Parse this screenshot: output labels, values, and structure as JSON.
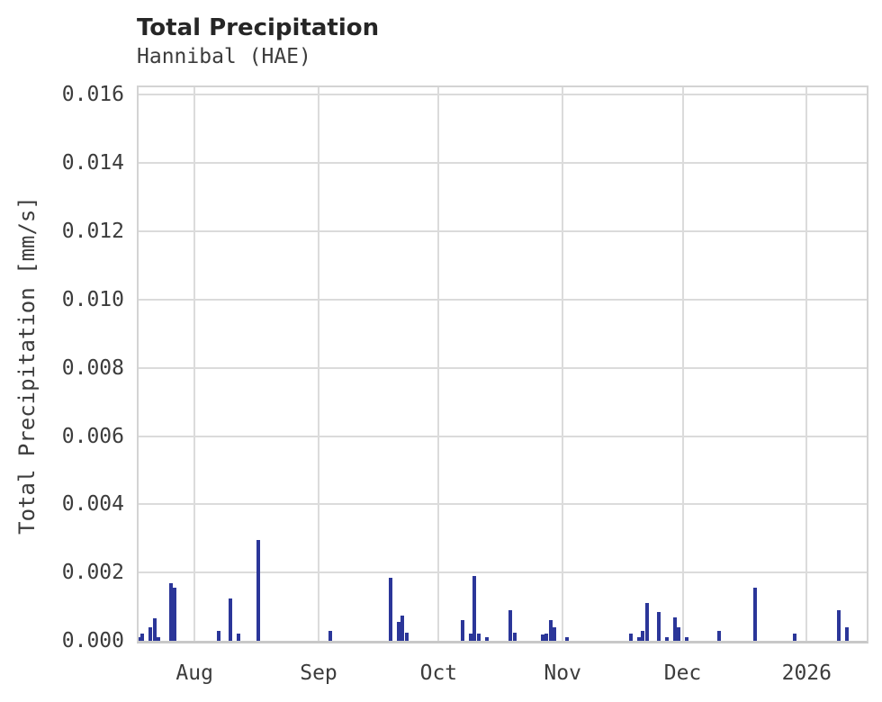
{
  "header": {
    "title": "Total Precipitation",
    "subtitle": "Hannibal (HAE)"
  },
  "chart_data": {
    "type": "bar",
    "title": "Total Precipitation",
    "subtitle": "Hannibal (HAE)",
    "xlabel": "",
    "ylabel": "Total Precipitation [mm/s]",
    "grid": "on",
    "legend_position": "none",
    "background_color": "#ffffff",
    "bar_color": "#2b3699",
    "grid_color": "#dbdbdb",
    "spine_color": "#d3d3d3",
    "x_domain": [
      "2025-07-18",
      "2026-01-16"
    ],
    "ylim": [
      0,
      0.01622
    ],
    "y_ticks": [
      {
        "v": 0.0,
        "label": "0.000"
      },
      {
        "v": 0.002,
        "label": "0.002"
      },
      {
        "v": 0.004,
        "label": "0.004"
      },
      {
        "v": 0.006,
        "label": "0.006"
      },
      {
        "v": 0.008,
        "label": "0.008"
      },
      {
        "v": 0.01,
        "label": "0.010"
      },
      {
        "v": 0.012,
        "label": "0.012"
      },
      {
        "v": 0.014,
        "label": "0.014"
      },
      {
        "v": 0.016,
        "label": "0.016"
      }
    ],
    "x_ticks": [
      {
        "d": "2025-08-01",
        "label": "Aug"
      },
      {
        "d": "2025-09-01",
        "label": "Sep"
      },
      {
        "d": "2025-10-01",
        "label": "Oct"
      },
      {
        "d": "2025-11-01",
        "label": "Nov"
      },
      {
        "d": "2025-12-01",
        "label": "Dec"
      },
      {
        "d": "2026-01-01",
        "label": "2026"
      }
    ],
    "bars": [
      {
        "d": "2025-07-18",
        "v": 0.0001
      },
      {
        "d": "2025-07-19",
        "v": 0.0002
      },
      {
        "d": "2025-07-21",
        "v": 0.0004
      },
      {
        "d": "2025-07-22",
        "v": 0.00065
      },
      {
        "d": "2025-07-23",
        "v": 0.0001
      },
      {
        "d": "2025-07-26",
        "v": 0.0017
      },
      {
        "d": "2025-07-27",
        "v": 0.00155
      },
      {
        "d": "2025-08-07",
        "v": 0.0003
      },
      {
        "d": "2025-08-10",
        "v": 0.00125
      },
      {
        "d": "2025-08-12",
        "v": 0.0002
      },
      {
        "d": "2025-08-17",
        "v": 0.00295
      },
      {
        "d": "2025-09-04",
        "v": 0.0003
      },
      {
        "d": "2025-09-19",
        "v": 0.00185
      },
      {
        "d": "2025-09-21",
        "v": 0.00055
      },
      {
        "d": "2025-09-22",
        "v": 0.00075
      },
      {
        "d": "2025-09-23",
        "v": 0.00025
      },
      {
        "d": "2025-10-07",
        "v": 0.0006
      },
      {
        "d": "2025-10-09",
        "v": 0.0002
      },
      {
        "d": "2025-10-10",
        "v": 0.0019
      },
      {
        "d": "2025-10-11",
        "v": 0.0002
      },
      {
        "d": "2025-10-13",
        "v": 0.00012
      },
      {
        "d": "2025-10-19",
        "v": 0.0009
      },
      {
        "d": "2025-10-20",
        "v": 0.00025
      },
      {
        "d": "2025-10-27",
        "v": 0.00018
      },
      {
        "d": "2025-10-28",
        "v": 0.0002
      },
      {
        "d": "2025-10-29",
        "v": 0.0006
      },
      {
        "d": "2025-10-30",
        "v": 0.0004
      },
      {
        "d": "2025-11-02",
        "v": 0.0001
      },
      {
        "d": "2025-11-18",
        "v": 0.0002
      },
      {
        "d": "2025-11-20",
        "v": 0.0001
      },
      {
        "d": "2025-11-21",
        "v": 0.0003
      },
      {
        "d": "2025-11-22",
        "v": 0.0011
      },
      {
        "d": "2025-11-25",
        "v": 0.00085
      },
      {
        "d": "2025-11-27",
        "v": 0.0001
      },
      {
        "d": "2025-11-29",
        "v": 0.0007
      },
      {
        "d": "2025-11-30",
        "v": 0.0004
      },
      {
        "d": "2025-12-02",
        "v": 0.0001
      },
      {
        "d": "2025-12-10",
        "v": 0.0003
      },
      {
        "d": "2025-12-19",
        "v": 0.00155
      },
      {
        "d": "2025-12-29",
        "v": 0.0002
      },
      {
        "d": "2026-01-09",
        "v": 0.0009
      },
      {
        "d": "2026-01-11",
        "v": 0.0004
      }
    ]
  }
}
